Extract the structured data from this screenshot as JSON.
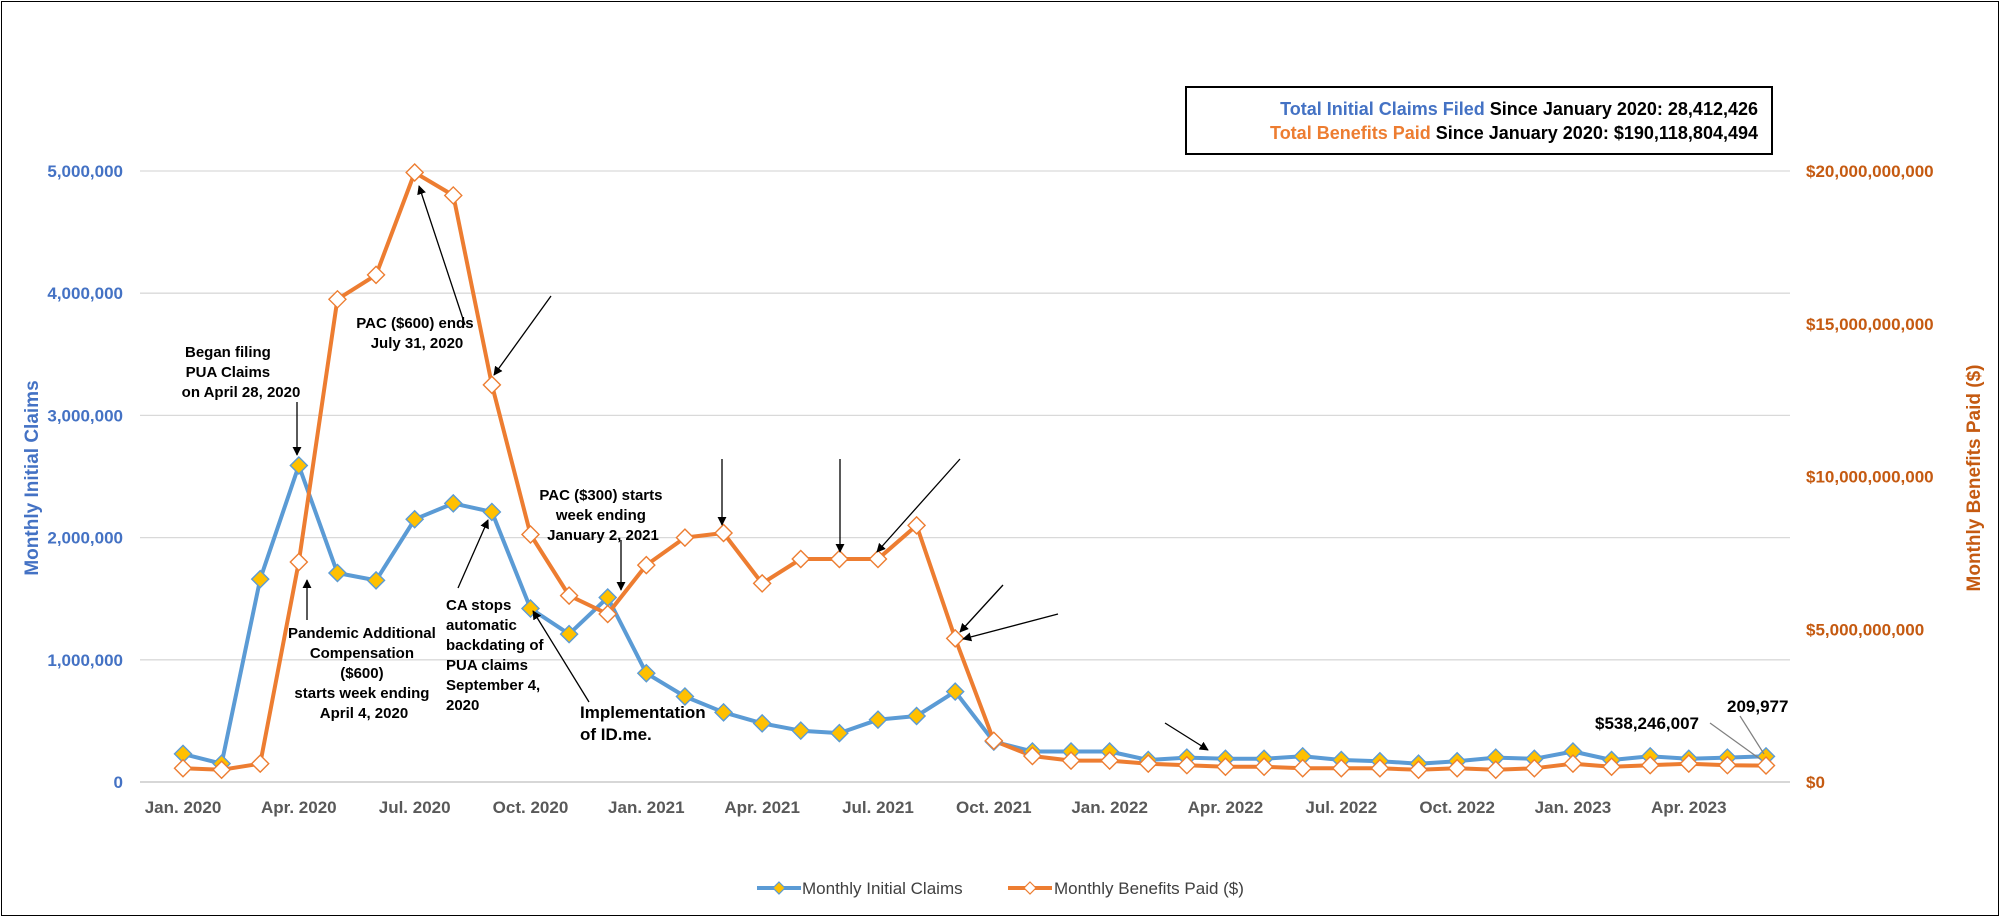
{
  "chart_data": {
    "type": "line",
    "x": [
      "Jan. 2020",
      "Feb. 2020",
      "Mar. 2020",
      "Apr. 2020",
      "May 2020",
      "Jun. 2020",
      "Jul. 2020",
      "Aug. 2020",
      "Sep. 2020",
      "Oct. 2020",
      "Nov. 2020",
      "Dec. 2020",
      "Jan. 2021",
      "Feb. 2021",
      "Mar. 2021",
      "Apr. 2021",
      "May 2021",
      "Jun. 2021",
      "Jul. 2021",
      "Aug. 2021",
      "Sep. 2021",
      "Oct. 2021",
      "Nov. 2021",
      "Dec. 2021",
      "Jan. 2022",
      "Feb. 2022",
      "Mar. 2022",
      "Apr. 2022",
      "May 2022",
      "Jun. 2022",
      "Jul. 2022",
      "Aug. 2022",
      "Sep. 2022",
      "Oct. 2022",
      "Nov. 2022",
      "Dec. 2022",
      "Jan. 2023",
      "Feb. 2023",
      "Mar. 2023",
      "Apr. 2023",
      "May 2023",
      "Jun. 2023"
    ],
    "x_tick_labels": [
      "Jan. 2020",
      "Apr. 2020",
      "Jul. 2020",
      "Oct. 2020",
      "Jan. 2021",
      "Apr. 2021",
      "Jul. 2021",
      "Oct. 2021",
      "Jan. 2022",
      "Apr. 2022",
      "Jul. 2022",
      "Oct. 2022",
      "Jan. 2023",
      "Apr. 2023"
    ],
    "x_tick_indices": [
      0,
      3,
      6,
      9,
      12,
      15,
      18,
      21,
      24,
      27,
      30,
      33,
      36,
      39
    ],
    "ylabel": "Monthly Initial Claims",
    "y2label": "Monthly Benefits Paid ($)",
    "ylim": [
      0,
      5000000
    ],
    "y2lim": [
      0,
      20000000000
    ],
    "yticks": [
      "0",
      "1,000,000",
      "2,000,000",
      "3,000,000",
      "4,000,000",
      "5,000,000"
    ],
    "y2ticks": [
      "$0",
      "$5,000,000,000",
      "$10,000,000,000",
      "$15,000,000,000",
      "$20,000,000,000"
    ],
    "grid": true,
    "legend": "bottom",
    "series": [
      {
        "name": "Monthly Initial Claims",
        "axis": "left",
        "color": "#5B9BD5",
        "marker_color": "#FFC000",
        "values": [
          230000,
          150000,
          1660000,
          2590000,
          1710000,
          1650000,
          2150000,
          2280000,
          2210000,
          1420000,
          1210000,
          1510000,
          890000,
          700000,
          570000,
          480000,
          420000,
          400000,
          510000,
          540000,
          740000,
          330000,
          250000,
          250000,
          250000,
          180000,
          200000,
          190000,
          190000,
          210000,
          180000,
          170000,
          150000,
          170000,
          200000,
          190000,
          250000,
          180000,
          210000,
          190000,
          200000,
          209977
        ]
      },
      {
        "name": "Monthly Benefits Paid ($)",
        "axis": "right",
        "color": "#ED7D31",
        "marker_color": "#FFFFFF",
        "values": [
          450000000,
          400000000,
          600000000,
          7200000000,
          15800000000,
          16600000000,
          19950000000,
          19200000000,
          13000000000,
          8100000000,
          6100000000,
          5500000000,
          7100000000,
          8000000000,
          8150000000,
          6500000000,
          7300000000,
          7300000000,
          7300000000,
          8400000000,
          4700000000,
          1350000000,
          850000000,
          700000000,
          700000000,
          600000000,
          550000000,
          500000000,
          500000000,
          450000000,
          450000000,
          450000000,
          400000000,
          450000000,
          400000000,
          450000000,
          600000000,
          500000000,
          550000000,
          600000000,
          550000000,
          538246007
        ]
      }
    ],
    "annotations": [
      {
        "lines": [
          "Began filing",
          "PUA Claims",
          "on April 28, 2020"
        ]
      },
      {
        "lines": [
          "PAC ($600) ends",
          "July 31, 2020"
        ]
      },
      {
        "lines": [
          "Pandemic Additional",
          "Compensation",
          "($600)",
          "starts week ending",
          "April 4, 2020"
        ]
      },
      {
        "lines": [
          "CA stops",
          "automatic",
          "backdating of",
          "PUA claims",
          "September 4,",
          "2020"
        ]
      },
      {
        "lines": [
          "Implementation",
          "of ID.me."
        ]
      },
      {
        "lines": [
          "PAC ($300) starts",
          "week ending",
          "January 2, 2021"
        ]
      }
    ],
    "data_labels": {
      "last_claims": "209,977",
      "last_benefits": "$538,246,007"
    },
    "totals": {
      "claims_label": "Total Initial Claims Filed",
      "claims_suffix": " Since January 2020: ",
      "claims_value": "28,412,426",
      "benefits_label": "Total Benefits Paid",
      "benefits_suffix": " Since January 2020: ",
      "benefits_value": "$190,118,804,494"
    }
  },
  "colors": {
    "left_axis": "#4472C4",
    "right_axis": "#C55A11",
    "claims_line": "#5B9BD5",
    "benefits_line": "#ED7D31",
    "claims_marker": "#FFC000"
  }
}
